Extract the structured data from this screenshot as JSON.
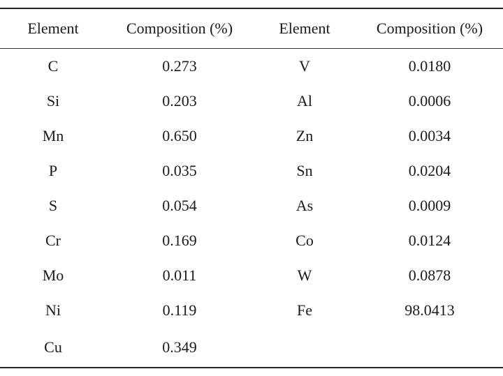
{
  "table": {
    "headers": [
      "Element",
      "Composition (%)",
      "Element",
      "Composition (%)"
    ],
    "rows": [
      [
        "C",
        "0.273",
        "V",
        "0.0180"
      ],
      [
        "Si",
        "0.203",
        "Al",
        "0.0006"
      ],
      [
        "Mn",
        "0.650",
        "Zn",
        "0.0034"
      ],
      [
        "P",
        "0.035",
        "Sn",
        "0.0204"
      ],
      [
        "S",
        "0.054",
        "As",
        "0.0009"
      ],
      [
        "Cr",
        "0.169",
        "Co",
        "0.0124"
      ],
      [
        "Mo",
        "0.011",
        "W",
        "0.0878"
      ],
      [
        "Ni",
        "0.119",
        "Fe",
        "98.0413"
      ],
      [
        "Cu",
        "0.349",
        "",
        ""
      ]
    ]
  }
}
